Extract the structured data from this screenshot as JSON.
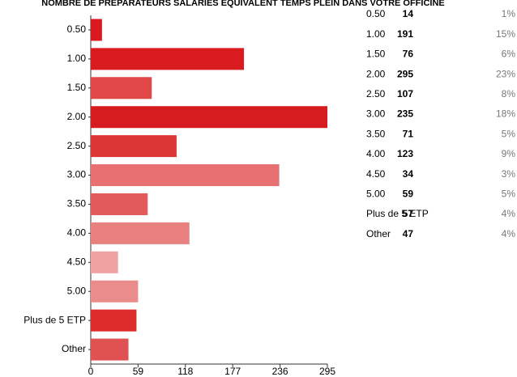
{
  "chart_data": {
    "type": "bar",
    "orientation": "horizontal",
    "title": "NOMBRE DE PRÉPARATEURS SALARIÉS ÉQUIVALENT TEMPS PLEIN DANS VOTRE OFFICINE",
    "categories": [
      "0.50",
      "1.00",
      "1.50",
      "2.00",
      "2.50",
      "3.00",
      "3.50",
      "4.00",
      "4.50",
      "5.00",
      "Plus de 5 ETP",
      "Other"
    ],
    "values": [
      14,
      191,
      76,
      295,
      107,
      235,
      71,
      123,
      34,
      59,
      57,
      47
    ],
    "share_labels": [
      "1%",
      "15%",
      "6%",
      "23%",
      "8%",
      "18%",
      "5%",
      "9%",
      "3%",
      "5%",
      "4%",
      "4%"
    ],
    "colors": [
      "#d9191e",
      "#d91a1e",
      "#e04848",
      "#d61c1f",
      "#dd3636",
      "#e87070",
      "#e25a5a",
      "#e88080",
      "#f0a2a2",
      "#ea8c8c",
      "#dd2a2a",
      "#e05252"
    ],
    "xlim": [
      0,
      295
    ],
    "xticks": [
      0,
      59,
      118,
      177,
      236,
      295
    ],
    "grid": false
  }
}
